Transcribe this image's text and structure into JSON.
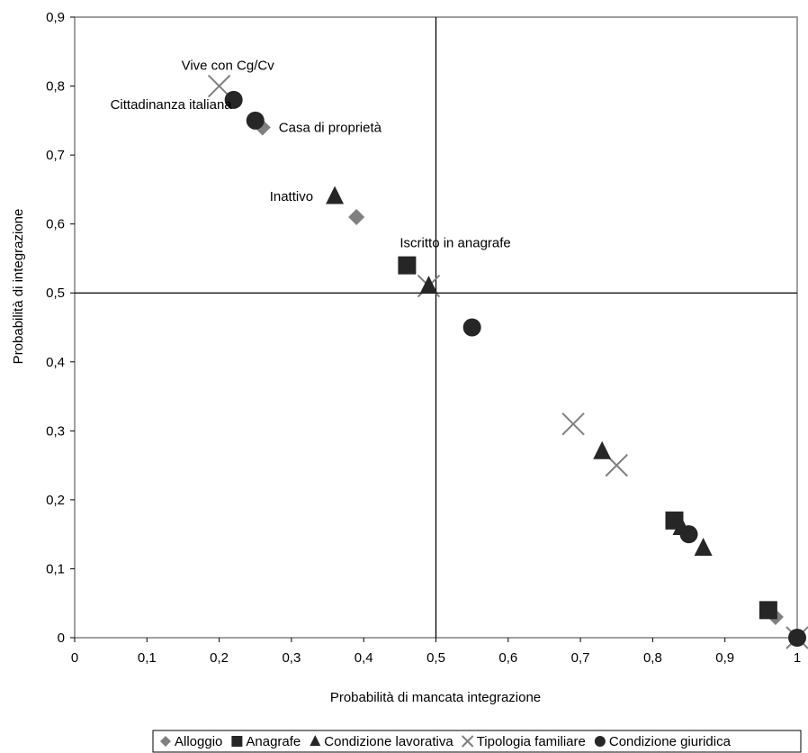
{
  "chart_data": {
    "type": "scatter",
    "xlabel": "Probabilità di mancata integrazione",
    "ylabel": "Probabilità di integrazione",
    "xlim": [
      0,
      1
    ],
    "ylim": [
      0,
      0.9
    ],
    "x_ticks": [
      "0",
      "0,1",
      "0,2",
      "0,3",
      "0,4",
      "0,5",
      "0,6",
      "0,7",
      "0,8",
      "0,9",
      "1"
    ],
    "y_ticks": [
      "0",
      "0,1",
      "0,2",
      "0,3",
      "0,4",
      "0,5",
      "0,6",
      "0,7",
      "0,8",
      "0,9"
    ],
    "reference_lines": {
      "x": 0.5,
      "y": 0.5
    },
    "grid": false,
    "legend_position": "bottom",
    "series": [
      {
        "name": "Alloggio",
        "marker": "diamond",
        "color": "#808080",
        "points": [
          [
            0.26,
            0.74
          ],
          [
            0.39,
            0.61
          ],
          [
            0.97,
            0.03
          ]
        ]
      },
      {
        "name": "Anagrafe",
        "marker": "square",
        "color": "#262626",
        "points": [
          [
            0.46,
            0.54
          ],
          [
            0.83,
            0.17
          ],
          [
            0.96,
            0.04
          ]
        ]
      },
      {
        "name": "Condizione lavorativa",
        "marker": "triangle",
        "color": "#262626",
        "points": [
          [
            0.36,
            0.64
          ],
          [
            0.49,
            0.51
          ],
          [
            0.73,
            0.27
          ],
          [
            0.84,
            0.16
          ],
          [
            0.87,
            0.13
          ]
        ]
      },
      {
        "name": "Tipologia familiare",
        "marker": "x",
        "color": "#808080",
        "points": [
          [
            0.2,
            0.8
          ],
          [
            0.49,
            0.51
          ],
          [
            0.69,
            0.31
          ],
          [
            0.75,
            0.25
          ],
          [
            1.0,
            0.0
          ]
        ]
      },
      {
        "name": "Condizione giuridica",
        "marker": "circle",
        "color": "#262626",
        "points": [
          [
            0.22,
            0.78
          ],
          [
            0.25,
            0.75
          ],
          [
            0.55,
            0.45
          ],
          [
            0.85,
            0.15
          ],
          [
            1.0,
            0.0
          ]
        ]
      }
    ],
    "annotations": [
      {
        "text": "Vive con Cg/Cv",
        "x": 0.2,
        "y": 0.8
      },
      {
        "text": "Cittadinanza italiana",
        "x": 0.22,
        "y": 0.78
      },
      {
        "text": "Casa di proprietà",
        "x": 0.26,
        "y": 0.74
      },
      {
        "text": "Inattivo",
        "x": 0.36,
        "y": 0.64
      },
      {
        "text": "Iscritto in anagrafe",
        "x": 0.46,
        "y": 0.54
      }
    ]
  }
}
